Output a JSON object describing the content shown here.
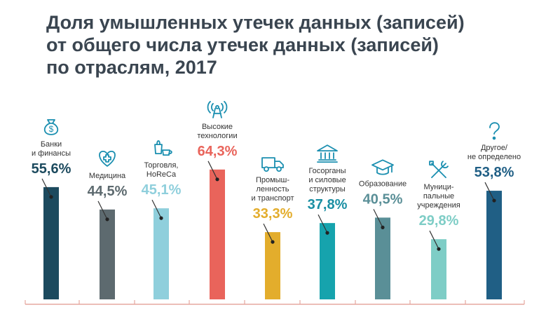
{
  "title_lines": [
    "Доля умышленных утечек данных (записей)",
    "от общего числа утечек данных (записей)",
    "по отраслям, 2017"
  ],
  "chart_data": {
    "type": "bar",
    "title": "Доля умышленных утечек данных (записей) от общего числа утечек данных (записей) по отраслям, 2017",
    "categories": [
      "Банки и финансы",
      "Медицина",
      "Торговля, HoReCa",
      "Высокие технологии",
      "Промышленность и транспорт",
      "Госорганы и силовые структуры",
      "Образование",
      "Муниципальные учреждения",
      "Другое/не определено"
    ],
    "values": [
      55.6,
      44.5,
      45.1,
      64.3,
      33.3,
      37.8,
      40.5,
      29.8,
      53.8
    ],
    "value_labels": [
      "55,6%",
      "44,5%",
      "45,1%",
      "64,3%",
      "33,3%",
      "37,8%",
      "40,5%",
      "29,8%",
      "53,8%"
    ],
    "label_lines": [
      [
        "Банки",
        "и финансы"
      ],
      [
        "Медицина"
      ],
      [
        "Торговля,",
        "HoReCa"
      ],
      [
        "Высокие",
        "технологии"
      ],
      [
        "Промыш-",
        "ленность",
        "и транспорт"
      ],
      [
        "Госорганы",
        "и силовые",
        "структуры"
      ],
      [
        "Образование"
      ],
      [
        "Муници-",
        "пальные",
        "учреждения"
      ],
      [
        "Другое/",
        "не определено"
      ]
    ],
    "icons": [
      "money-bag-icon",
      "medical-cross-icon",
      "shopping-cup-icon",
      "signal-tower-icon",
      "truck-icon",
      "government-building-icon",
      "graduation-cap-icon",
      "tools-icon",
      "question-mark-icon"
    ],
    "colors": [
      "#1c4a5e",
      "#5d6a6f",
      "#8fcfdc",
      "#e9645b",
      "#e3ad2c",
      "#16a3ad",
      "#5a8f97",
      "#7ecdc6",
      "#205f85"
    ],
    "value_colors": [
      "#1c4a5e",
      "#5d6a6f",
      "#8fcfdc",
      "#e9645b",
      "#e3ad2c",
      "#1a8fa3",
      "#5a8f97",
      "#7ecdc6",
      "#205f85"
    ],
    "icon_color": "#1b8fb0",
    "axis_color": "#e5a8a0",
    "ylim": [
      0,
      100
    ]
  }
}
